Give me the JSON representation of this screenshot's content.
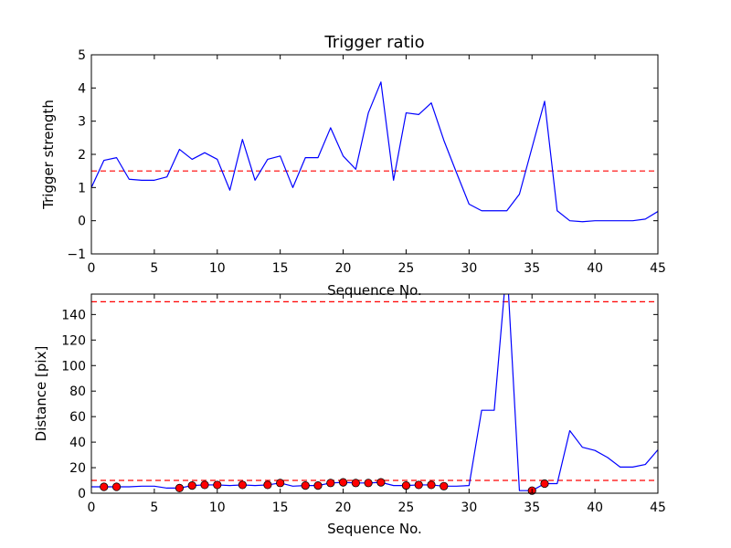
{
  "chart_data": [
    {
      "type": "line",
      "title": "Trigger ratio",
      "xlabel": "Sequence No.",
      "ylabel": "Trigger strength",
      "xlim": [
        0,
        45
      ],
      "ylim": [
        -1,
        5
      ],
      "xticks": [
        0,
        5,
        10,
        15,
        20,
        25,
        30,
        35,
        40,
        45
      ],
      "yticks": [
        -1,
        0,
        1,
        2,
        3,
        4,
        5
      ],
      "grid": false,
      "series": [
        {
          "color": "#0000ff",
          "x": [
            0,
            1,
            2,
            3,
            4,
            5,
            6,
            7,
            8,
            9,
            10,
            11,
            12,
            13,
            14,
            15,
            16,
            17,
            18,
            19,
            20,
            21,
            22,
            23,
            24,
            25,
            26,
            27,
            28,
            29,
            30,
            31,
            32,
            33,
            34,
            35,
            36,
            37,
            38,
            39,
            40,
            41,
            42,
            43,
            44,
            45
          ],
          "values": [
            1.0,
            1.82,
            1.9,
            1.25,
            1.22,
            1.22,
            1.32,
            2.15,
            1.85,
            2.05,
            1.85,
            0.92,
            2.45,
            1.22,
            1.85,
            1.95,
            1.0,
            1.9,
            1.9,
            2.8,
            1.95,
            1.55,
            3.25,
            4.18,
            1.22,
            3.25,
            3.2,
            3.55,
            2.42,
            1.45,
            0.5,
            0.3,
            0.3,
            0.3,
            0.8,
            2.2,
            3.6,
            0.3,
            0.0,
            -0.03,
            0.0,
            0.0,
            0.0,
            0.0,
            0.05,
            0.28
          ]
        }
      ],
      "reference_lines": [
        {
          "y": 1.5,
          "color": "#ff0000",
          "style": "dashed"
        }
      ]
    },
    {
      "type": "line",
      "title": "",
      "xlabel": "Sequence No.",
      "ylabel": "Distance [pix]",
      "xlim": [
        0,
        45
      ],
      "ylim": [
        0,
        156
      ],
      "xticks": [
        0,
        5,
        10,
        15,
        20,
        25,
        30,
        35,
        40,
        45
      ],
      "yticks": [
        0,
        20,
        40,
        60,
        80,
        100,
        120,
        140
      ],
      "grid": false,
      "series": [
        {
          "color": "#0000ff",
          "x": [
            0,
            1,
            2,
            3,
            4,
            5,
            6,
            7,
            8,
            9,
            10,
            11,
            12,
            13,
            14,
            15,
            16,
            17,
            18,
            19,
            20,
            21,
            22,
            23,
            24,
            25,
            26,
            27,
            28,
            29,
            30,
            31,
            32,
            33,
            34,
            35,
            36,
            37,
            38,
            39,
            40,
            41,
            42,
            43,
            44,
            45
          ],
          "values": [
            5,
            5,
            5,
            5,
            5.5,
            5.5,
            4,
            4,
            6,
            6.5,
            6.5,
            6,
            6.5,
            6,
            6.5,
            8,
            5.5,
            6,
            6,
            8,
            8.5,
            8,
            8,
            8.5,
            6,
            6,
            6.5,
            6.5,
            5.5,
            5.5,
            6,
            65,
            65,
            180,
            2,
            2,
            7.5,
            7.5,
            49,
            36,
            33.5,
            28,
            20.5,
            20.5,
            22.5,
            34
          ]
        },
        {
          "color": "#ff0000",
          "marker": "circle",
          "x": [
            1,
            2,
            7,
            8,
            9,
            10,
            12,
            14,
            15,
            17,
            18,
            19,
            20,
            21,
            22,
            23,
            25,
            26,
            27,
            28,
            35,
            36
          ],
          "values": [
            5,
            5,
            4,
            6,
            6.5,
            6.5,
            6.5,
            6.5,
            8,
            6,
            6,
            8,
            8.5,
            8,
            8,
            8.5,
            6,
            6.5,
            6.5,
            5.5,
            2,
            7.5
          ]
        }
      ],
      "reference_lines": [
        {
          "y": 150,
          "color": "#ff0000",
          "style": "dashed"
        },
        {
          "y": 10,
          "color": "#ff0000",
          "style": "dashed"
        }
      ]
    }
  ]
}
